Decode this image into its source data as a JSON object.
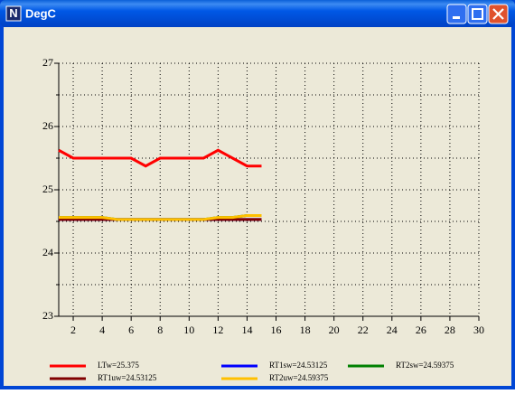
{
  "window": {
    "title": "DegC"
  },
  "chart_data": {
    "type": "line",
    "x": [
      1,
      2,
      3,
      4,
      5,
      6,
      7,
      8,
      9,
      10,
      11,
      12,
      13,
      14,
      15
    ],
    "xlim": [
      1,
      30
    ],
    "xticks": [
      2,
      4,
      6,
      8,
      10,
      12,
      14,
      16,
      18,
      20,
      22,
      24,
      26,
      28,
      30
    ],
    "ylim": [
      23,
      27
    ],
    "yticks": [
      23,
      24,
      25,
      26,
      27
    ],
    "yminorticks": [
      23.5,
      24.5,
      25.5,
      26.5
    ],
    "grid": true,
    "series": [
      {
        "name": "LTw=25.375",
        "color": "#ff0000",
        "values": [
          25.625,
          25.5,
          25.5,
          25.5,
          25.5,
          25.5,
          25.375,
          25.5,
          25.5,
          25.5,
          25.5,
          25.625,
          25.5,
          25.375,
          25.375
        ]
      },
      {
        "name": "RT1sw=24.53125",
        "color": "#0000ff",
        "values": [
          24.53125,
          24.53125,
          24.53125,
          24.53125,
          24.53125,
          24.53125,
          24.53125,
          24.53125,
          24.53125,
          24.53125,
          24.53125,
          24.53125,
          24.53125,
          24.53125,
          24.53125
        ]
      },
      {
        "name": "RT2sw=24.59375",
        "color": "#008000",
        "values": [
          24.5625,
          24.5625,
          24.5625,
          24.5625,
          24.53125,
          24.53125,
          24.53125,
          24.53125,
          24.53125,
          24.53125,
          24.53125,
          24.5625,
          24.5625,
          24.59375,
          24.59375
        ]
      },
      {
        "name": "RT1uw=24.53125",
        "color": "#800000",
        "values": [
          24.53125,
          24.53125,
          24.53125,
          24.53125,
          24.53125,
          24.53125,
          24.53125,
          24.53125,
          24.53125,
          24.53125,
          24.53125,
          24.53125,
          24.53125,
          24.53125,
          24.53125
        ]
      },
      {
        "name": "RT2uw=24.59375",
        "color": "#ffc000",
        "values": [
          24.5625,
          24.5625,
          24.5625,
          24.5625,
          24.53125,
          24.53125,
          24.53125,
          24.53125,
          24.53125,
          24.53125,
          24.53125,
          24.5625,
          24.5625,
          24.59375,
          24.59375
        ]
      }
    ]
  }
}
